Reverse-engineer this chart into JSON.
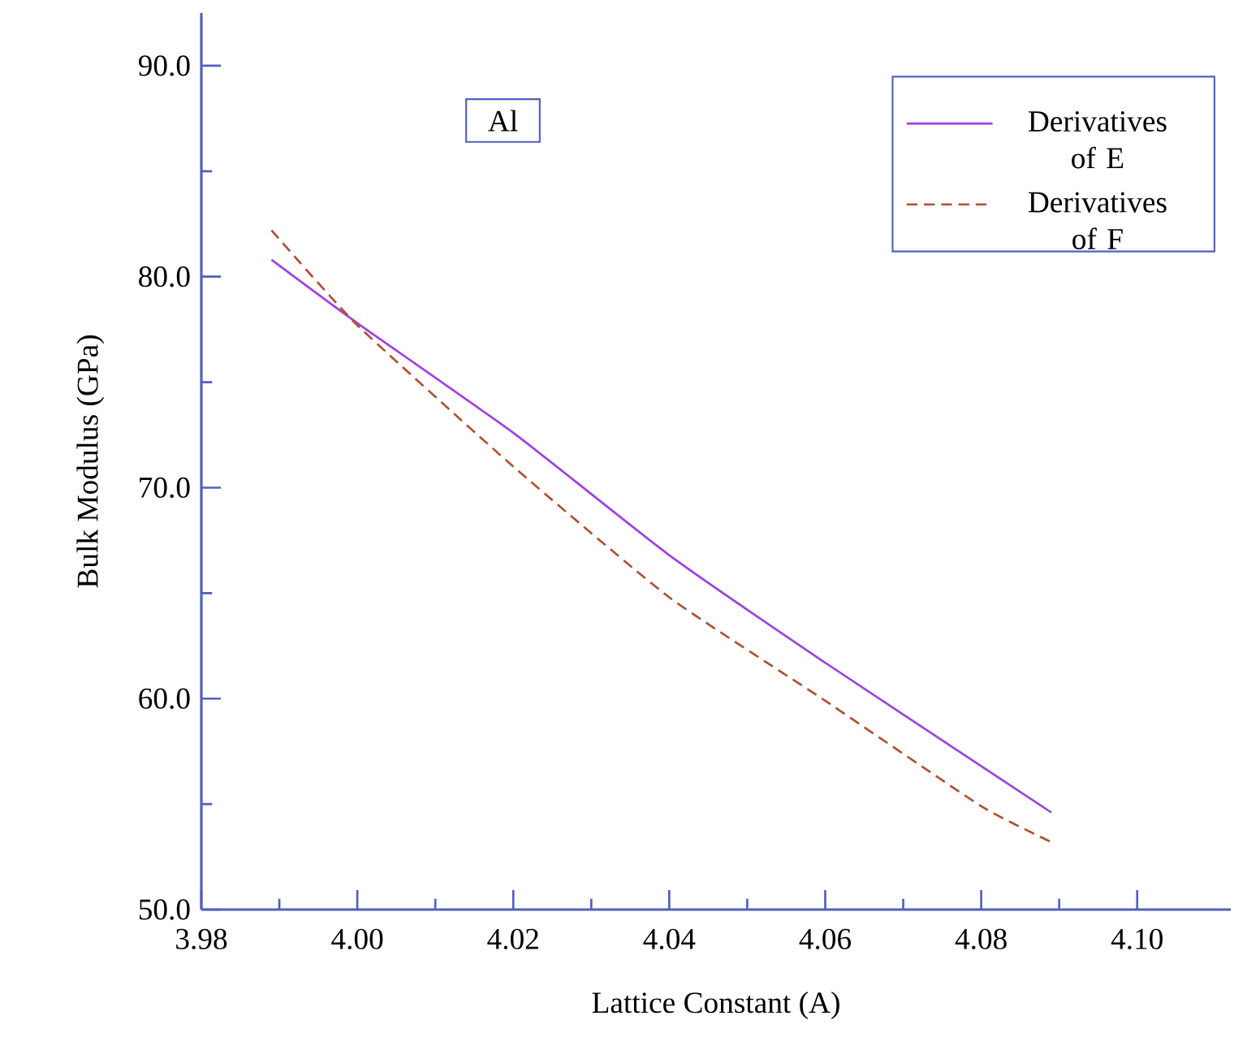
{
  "chart_data": {
    "type": "line",
    "xlabel": "Lattice Constant (A)",
    "ylabel": "Bulk Modulus (GPa)",
    "annotations": [
      "Al"
    ],
    "xlim": [
      3.98,
      4.112
    ],
    "ylim": [
      50,
      92.5
    ],
    "xticks": [
      {
        "value": 3.98,
        "label": "3.98"
      },
      {
        "value": 4.0,
        "label": "4.00"
      },
      {
        "value": 4.02,
        "label": "4.02"
      },
      {
        "value": 4.04,
        "label": "4.04"
      },
      {
        "value": 4.06,
        "label": "4.06"
      },
      {
        "value": 4.08,
        "label": "4.08"
      },
      {
        "value": 4.1,
        "label": "4.10"
      }
    ],
    "yticks": [
      {
        "value": 50,
        "label": "50.0"
      },
      {
        "value": 60,
        "label": "60.0"
      },
      {
        "value": 70,
        "label": "70.0"
      },
      {
        "value": 80,
        "label": "80.0"
      },
      {
        "value": 90,
        "label": "90.0"
      }
    ],
    "legend": "top right",
    "grid": false,
    "marker": "none",
    "series": [
      {
        "name": "Derivatives of E",
        "color": "#a040e0",
        "line_style": "solid",
        "x": [
          3.989,
          4.0,
          4.02,
          4.04,
          4.06,
          4.08,
          4.089
        ],
        "values": [
          80.8,
          77.8,
          72.6,
          66.8,
          61.7,
          56.8,
          54.6
        ]
      },
      {
        "name": "Derivatives of F",
        "color": "#b05030",
        "line_style": "dashed",
        "x": [
          3.989,
          4.0,
          4.02,
          4.04,
          4.06,
          4.08,
          4.089
        ],
        "values": [
          82.2,
          77.7,
          71.0,
          64.8,
          59.9,
          54.9,
          53.2
        ]
      }
    ]
  }
}
